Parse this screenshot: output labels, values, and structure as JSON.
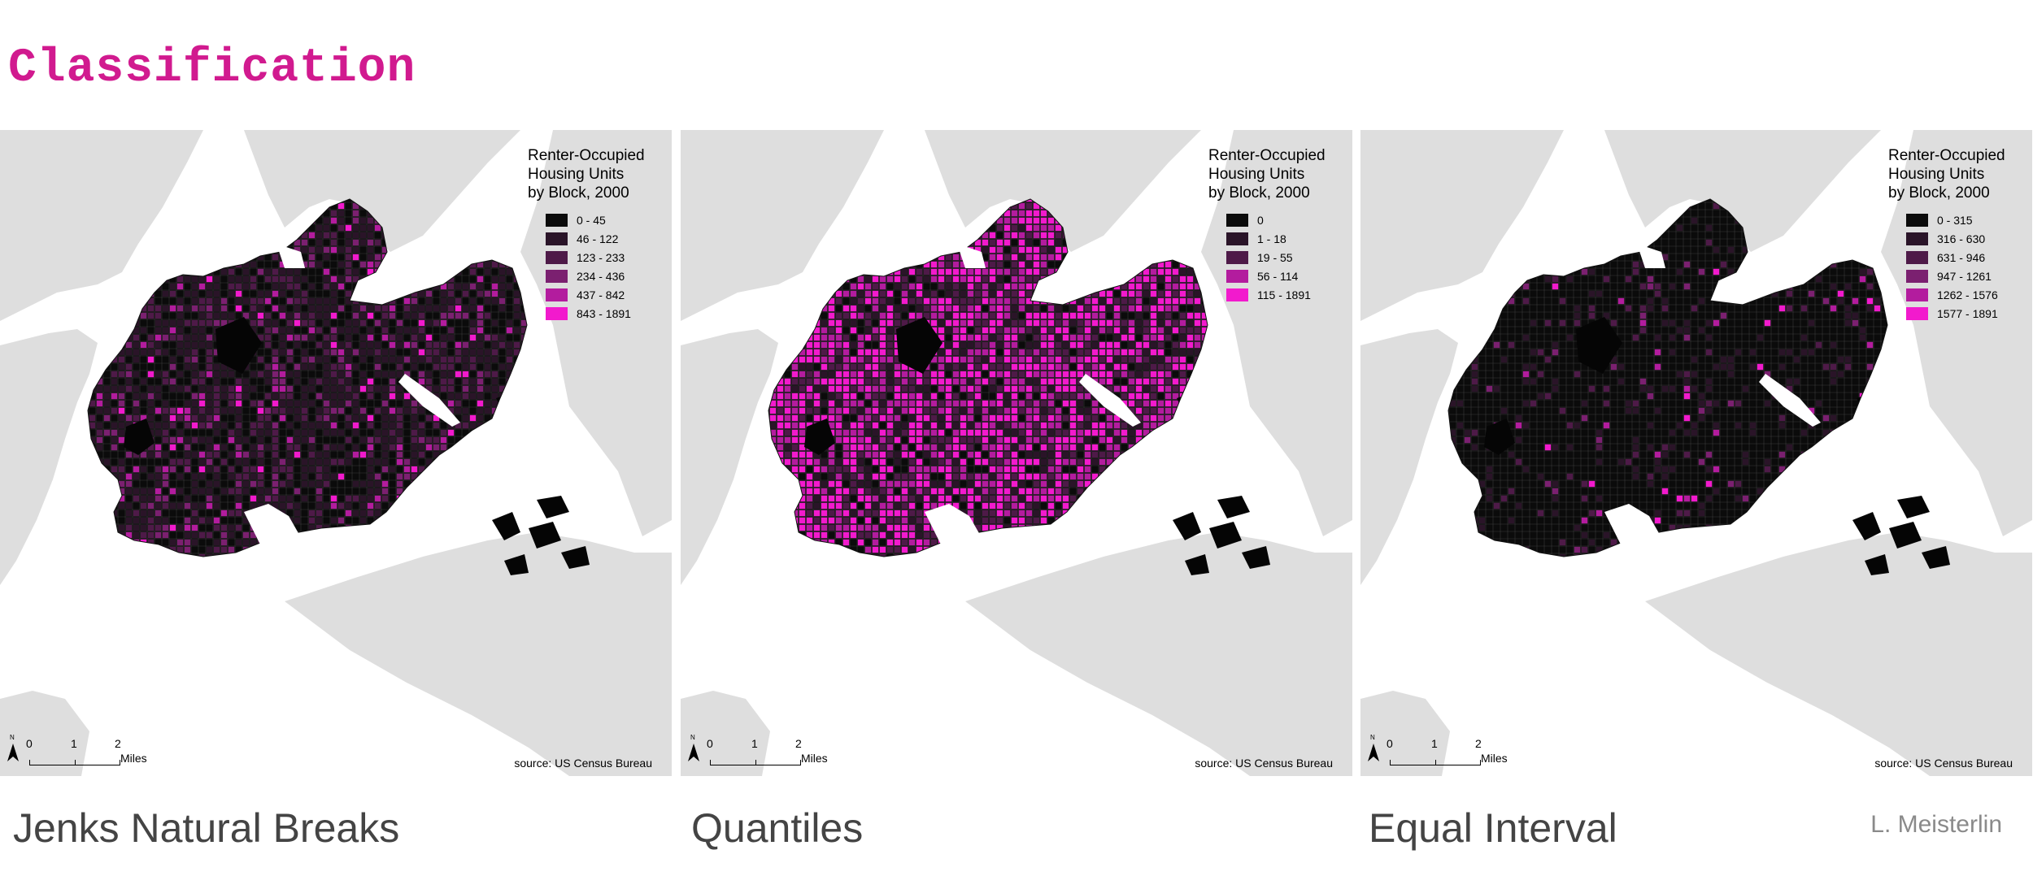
{
  "title": "Classification",
  "legend_title": "Renter-Occupied\nHousing Units\nby Block, 2000",
  "source": "source: US Census Bureau",
  "scale": {
    "ticks": [
      "0",
      "1",
      "2"
    ],
    "units": "Miles",
    "north": "N"
  },
  "author": "L. Meisterlin",
  "colors": {
    "title": "#d11a8f",
    "land": "#dedede",
    "water": "#ffffff",
    "classes": [
      "#0b0b0b",
      "#2a1428",
      "#4e1a48",
      "#7b2070",
      "#b31c9e",
      "#f21acd"
    ]
  },
  "panels": [
    {
      "method": "Jenks Natural Breaks",
      "classes": [
        "0 - 45",
        "46 - 122",
        "123 - 233",
        "234 - 436",
        "437 - 842",
        "843 - 1891"
      ],
      "class_share": [
        0.3,
        0.36,
        0.16,
        0.1,
        0.05,
        0.03
      ]
    },
    {
      "method": "Quantiles",
      "classes": [
        "0",
        "1 - 18",
        "19 - 55",
        "56 - 114",
        "115 - 1891"
      ],
      "class_share": [
        0.1,
        0.14,
        0.18,
        0.22,
        0.36
      ]
    },
    {
      "method": "Equal Interval",
      "classes": [
        "0 - 315",
        "316 - 630",
        "631 - 946",
        "947 - 1261",
        "1262 - 1576",
        "1577 - 1891"
      ],
      "class_share": [
        0.8,
        0.12,
        0.04,
        0.02,
        0.01,
        0.01
      ]
    }
  ]
}
